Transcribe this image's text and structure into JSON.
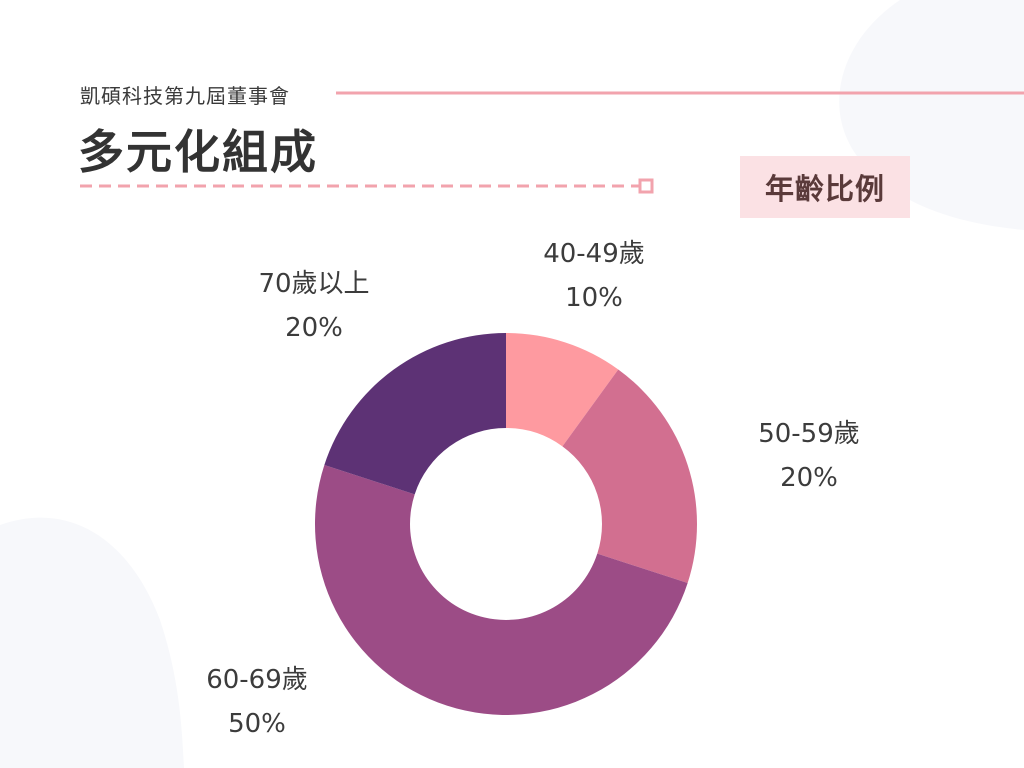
{
  "header": {
    "subtitle": "凱碩科技第九屆董事會",
    "title": "多元化組成"
  },
  "badge": {
    "label": "年齡比例"
  },
  "colors": {
    "accent_line": "#f2a3ad",
    "badge_bg": "#fbe1e4",
    "deco_blob": "#f7f8fb",
    "donut_hole": "#ffffff"
  },
  "chart_data": {
    "type": "pie",
    "donut": true,
    "title": "",
    "categories": [
      "40-49歲",
      "50-59歲",
      "60-69歲",
      "70歲以上"
    ],
    "values": [
      10,
      20,
      50,
      20
    ],
    "value_labels": [
      "10%",
      "20%",
      "50%",
      "20%"
    ],
    "colors": [
      "#fe9aa0",
      "#d26f90",
      "#9c4c86",
      "#5d3275"
    ],
    "start": "12 o'clock",
    "direction": "clockwise",
    "legend": "none"
  }
}
